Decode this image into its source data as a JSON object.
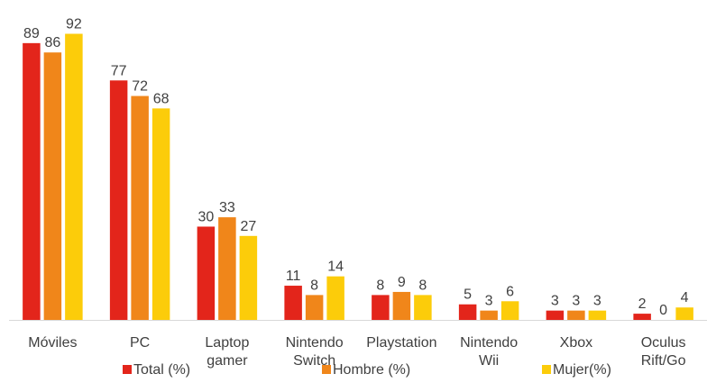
{
  "chart_data": {
    "type": "bar",
    "title": "",
    "xlabel": "",
    "ylabel": "",
    "ylim": [
      0,
      100
    ],
    "grid": false,
    "legend_position": "bottom",
    "categories": [
      "Móviles",
      "PC",
      "Laptop\ngamer",
      "Nintendo\nSwitch",
      "Playstation",
      "Nintendo\nWii",
      "Xbox",
      "Oculus\nRift/Go"
    ],
    "series": [
      {
        "name": "Total (%)",
        "color": "#e3251b",
        "values": [
          89,
          77,
          30,
          11,
          8,
          5,
          3,
          2
        ]
      },
      {
        "name": "Hombre (%)",
        "color": "#f0861a",
        "values": [
          86,
          72,
          33,
          8,
          9,
          3,
          3,
          0
        ]
      },
      {
        "name": "Mujer(%)",
        "color": "#fccc0a",
        "values": [
          92,
          68,
          27,
          14,
          8,
          6,
          3,
          4
        ]
      }
    ]
  }
}
